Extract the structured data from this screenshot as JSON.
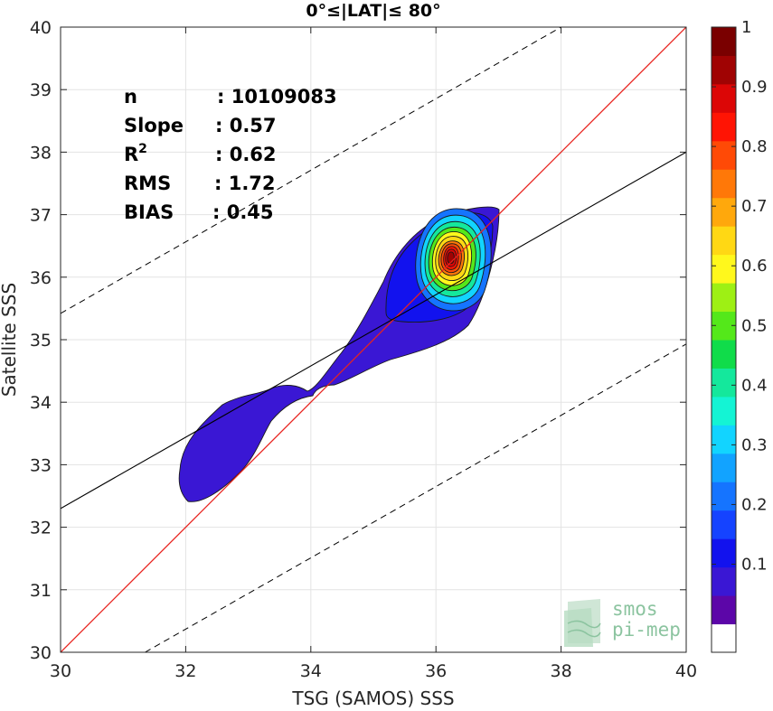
{
  "chart_data": {
    "type": "heatmap",
    "title": "0°≤|LAT|≤ 80°",
    "xlabel": "TSG (SAMOS) SSS",
    "ylabel": "Satellite SSS",
    "xlim": [
      30,
      40
    ],
    "ylim": [
      30,
      40
    ],
    "xticks": [
      "30",
      "32",
      "34",
      "36",
      "38",
      "40"
    ],
    "yticks": [
      "30",
      "31",
      "32",
      "33",
      "34",
      "35",
      "36",
      "37",
      "38",
      "39",
      "40"
    ],
    "grid": true,
    "stats": [
      {
        "label": "n",
        "value": ": 10109083"
      },
      {
        "label": "Slope",
        "value": ": 0.57"
      },
      {
        "label": "R",
        "superscript": "2",
        "value": ": 0.62"
      },
      {
        "label": "RMS",
        "value": ": 1.72"
      },
      {
        "label": "BIAS",
        "value": ": 0.45"
      }
    ],
    "lines": {
      "identity": {
        "slope": 1,
        "intercept": 0,
        "color": "#e8231e"
      },
      "fit": {
        "points": [
          [
            30,
            32.3
          ],
          [
            40,
            38.0
          ]
        ],
        "color": "#000000"
      },
      "upper_bound": {
        "points": [
          [
            30,
            35.42
          ],
          [
            38,
            40.0
          ]
        ],
        "style": "dashed"
      },
      "lower_bound": {
        "points": [
          [
            31.35,
            30.0
          ],
          [
            40,
            34.93
          ]
        ],
        "style": "dashed"
      }
    },
    "density_peak": {
      "x": 36.25,
      "y": 36.3
    },
    "colorbar": {
      "range": [
        0,
        1
      ],
      "ticks": [
        "0.1",
        "0.2",
        "0.3",
        "0.4",
        "0.5",
        "0.6",
        "0.7",
        "0.8",
        "0.9",
        "1"
      ],
      "colors": [
        "#ffffff",
        "#5c06a8",
        "#3a17d4",
        "#1212ee",
        "#1543ff",
        "#1574ff",
        "#12a3ff",
        "#12d4ff",
        "#14f4d4",
        "#14e89c",
        "#10dc4a",
        "#54e81a",
        "#9ef014",
        "#fff81c",
        "#ffd814",
        "#ffa80c",
        "#ff7808",
        "#ff4a06",
        "#ff1404",
        "#dc0606",
        "#a00303",
        "#7a0000"
      ]
    }
  },
  "logo": {
    "line1": "smos",
    "line2": "pi-mep"
  }
}
